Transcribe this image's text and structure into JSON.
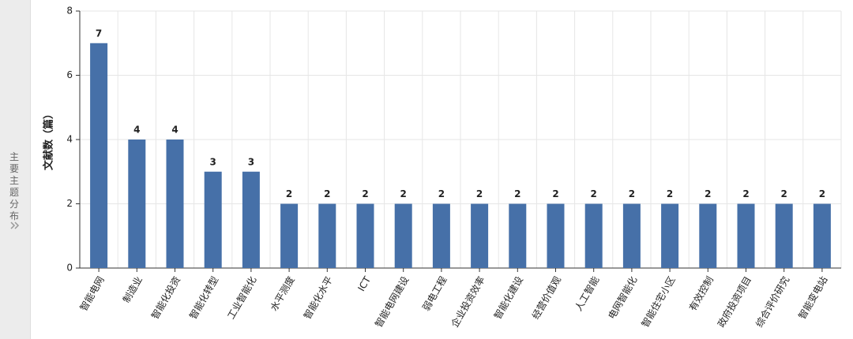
{
  "sidebar": {
    "label": "主要主题分布"
  },
  "chart_data": {
    "type": "bar",
    "y_label": "文献数（篇）",
    "categories": [
      "智能电网",
      "制造业",
      "智能化投资",
      "智能化转型",
      "工业智能化",
      "水平测度",
      "智能化水平",
      "ICT",
      "智能电网建设",
      "弱电工程",
      "企业投资效率",
      "智能化建设",
      "经营价值观",
      "人工智能",
      "电网智能化",
      "智能住宅小区",
      "有效控制",
      "政府投资项目",
      "综合评价研究",
      "智能变电站"
    ],
    "values": [
      7,
      4,
      4,
      3,
      3,
      2,
      2,
      2,
      2,
      2,
      2,
      2,
      2,
      2,
      2,
      2,
      2,
      2,
      2,
      2
    ],
    "color": "#4670a8",
    "ylim": [
      0,
      8
    ],
    "yticks": [
      0,
      2,
      4,
      6,
      8
    ],
    "grid": true
  }
}
